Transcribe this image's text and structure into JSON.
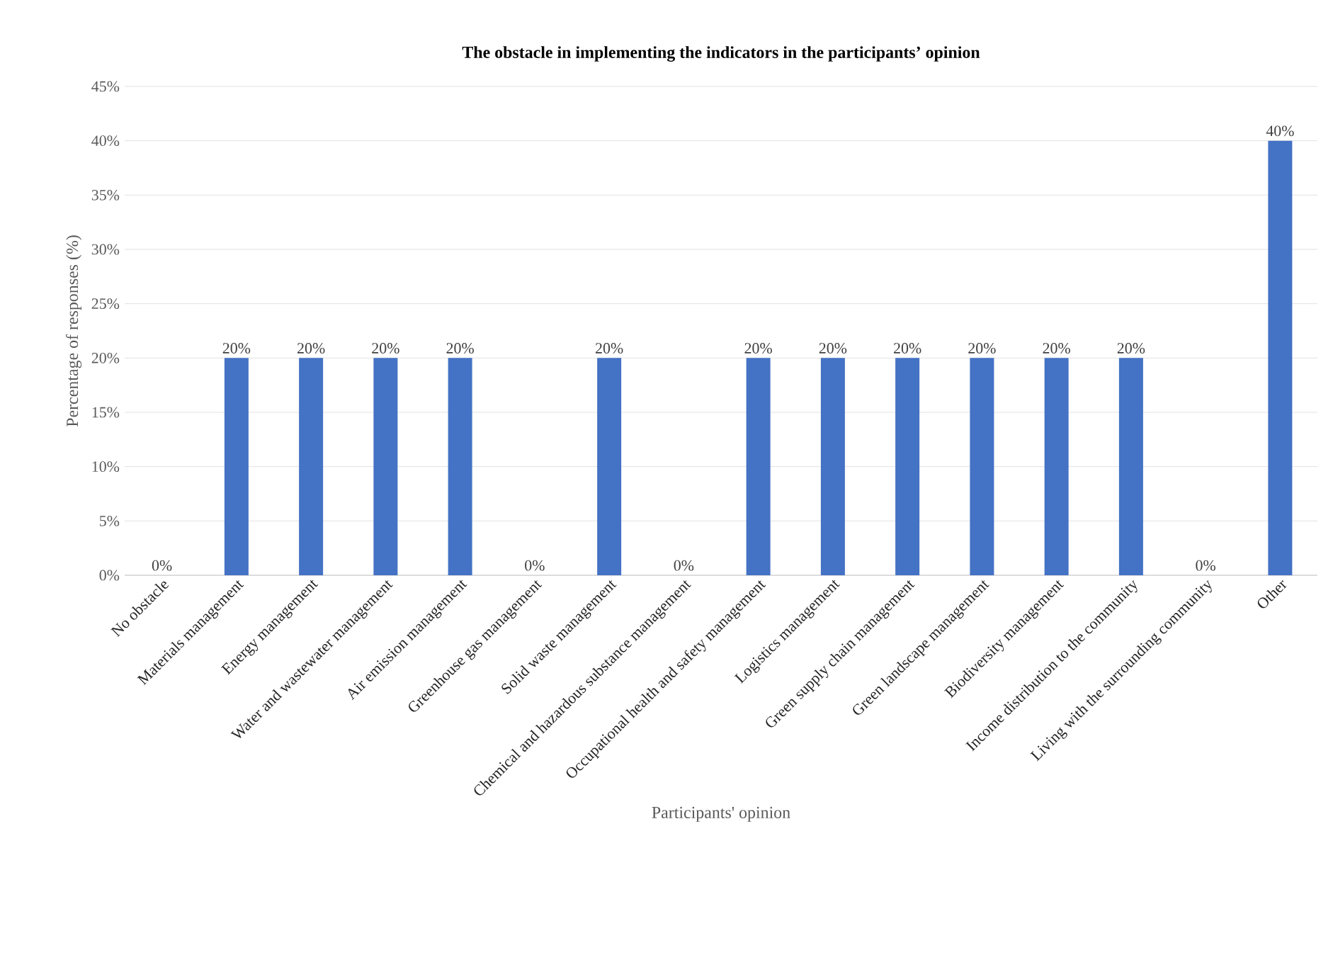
{
  "chart_data": {
    "type": "bar",
    "title": "The obstacle in implementing the indicators in the participants’ opinion",
    "xlabel": "Participants' opinion",
    "ylabel": "Percentage of responses (%)",
    "categories": [
      "No obstacle",
      "Materials management",
      "Energy management",
      "Water and wastewater management",
      "Air emission management",
      "Greenhouse gas management",
      "Solid waste management",
      "Chemical and hazardous substance management",
      "Occupational health and safety management",
      "Logistics management",
      "Green supply chain management",
      "Green landscape management",
      "Biodiversity management",
      "Income distribution to the community",
      "Living with the surrounding community",
      "Other"
    ],
    "values": [
      0,
      20,
      20,
      20,
      20,
      0,
      20,
      0,
      20,
      20,
      20,
      20,
      20,
      20,
      0,
      40
    ],
    "value_labels": [
      "0%",
      "20%",
      "20%",
      "20%",
      "20%",
      "0%",
      "20%",
      "0%",
      "20%",
      "20%",
      "20%",
      "20%",
      "20%",
      "20%",
      "0%",
      "40%"
    ],
    "color": "#4472c4",
    "ylim": [
      0,
      45
    ],
    "yticks": [
      {
        "value": 0,
        "label": "0%"
      },
      {
        "value": 5,
        "label": "5%"
      },
      {
        "value": 10,
        "label": "10%"
      },
      {
        "value": 15,
        "label": "15%"
      },
      {
        "value": 20,
        "label": "20%"
      },
      {
        "value": 25,
        "label": "25%"
      },
      {
        "value": 30,
        "label": "30%"
      },
      {
        "value": 35,
        "label": "35%"
      },
      {
        "value": 40,
        "label": "40%"
      },
      {
        "value": 45,
        "label": "45%"
      }
    ],
    "grid": "y"
  }
}
